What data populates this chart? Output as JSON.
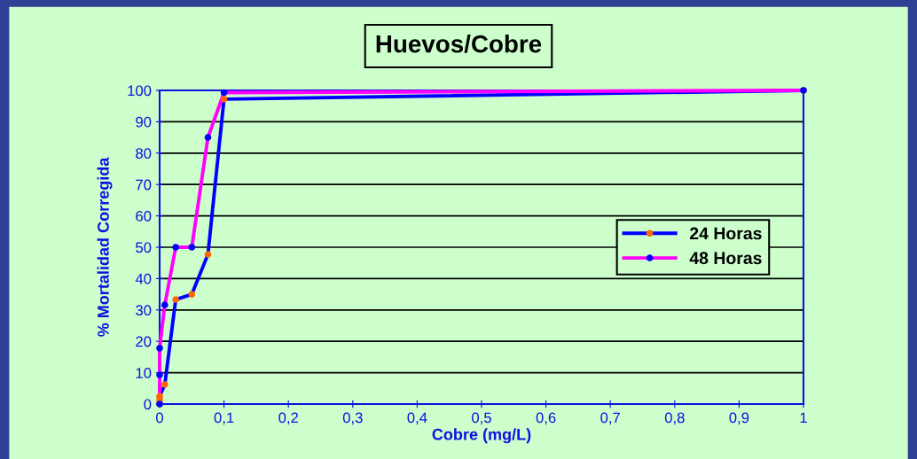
{
  "chart_data": {
    "type": "line",
    "title": "Huevos/Cobre",
    "xlabel": "Cobre (mg/L)",
    "ylabel": "% Mortalidad Corregida",
    "series": [
      {
        "name": "24 Horas",
        "color": "#0000ff",
        "colors": [
          "#ff6600",
          "#ff6600",
          "#ff6600",
          "#ff6600",
          "#ff6600",
          "#ff6600",
          "#ff6600",
          "#ff6600",
          "#ff6600"
        ],
        "x": [
          0,
          0,
          0,
          0.008,
          0.025,
          0.05,
          0.075,
          0.1,
          1
        ],
        "values": [
          0,
          1.4,
          2.5,
          6.2,
          33.3,
          35,
          47.7,
          97.2,
          100
        ]
      },
      {
        "name": "48 Horas",
        "color": "#ff00ff",
        "colors": [
          "#0000ff",
          "#0000ff",
          "#0000ff",
          "#0000ff",
          "#0000ff",
          "#0000ff",
          "#0000ff",
          "#0000ff",
          "#0000ff"
        ],
        "x": [
          0,
          0,
          0,
          0.008,
          0.025,
          0.05,
          0.075,
          0.1,
          1
        ],
        "values": [
          0,
          9.3,
          17.8,
          31.6,
          50,
          50,
          85,
          99.3,
          100
        ]
      }
    ],
    "xlim": [
      0,
      1
    ],
    "ylim": [
      0,
      100
    ],
    "xticks": [
      0,
      {
        "value": 0.1,
        "label": "0,1"
      },
      {
        "value": 0.2,
        "label": "0,2"
      },
      {
        "value": 0.3,
        "label": "0,3"
      },
      {
        "value": 0.4,
        "label": "0,4"
      },
      {
        "value": 0.5,
        "label": "0,5"
      },
      {
        "value": 0.6,
        "label": "0,6"
      },
      {
        "value": 0.7,
        "label": "0,7"
      },
      {
        "value": 0.8,
        "label": "0,8"
      },
      {
        "value": 0.9,
        "label": "0,9"
      },
      1
    ],
    "yticks": [
      0,
      10,
      20,
      30,
      40,
      50,
      60,
      70,
      80,
      90,
      100
    ],
    "grid": "y",
    "legend": "right",
    "marker": "circle",
    "line_style": "solid"
  }
}
